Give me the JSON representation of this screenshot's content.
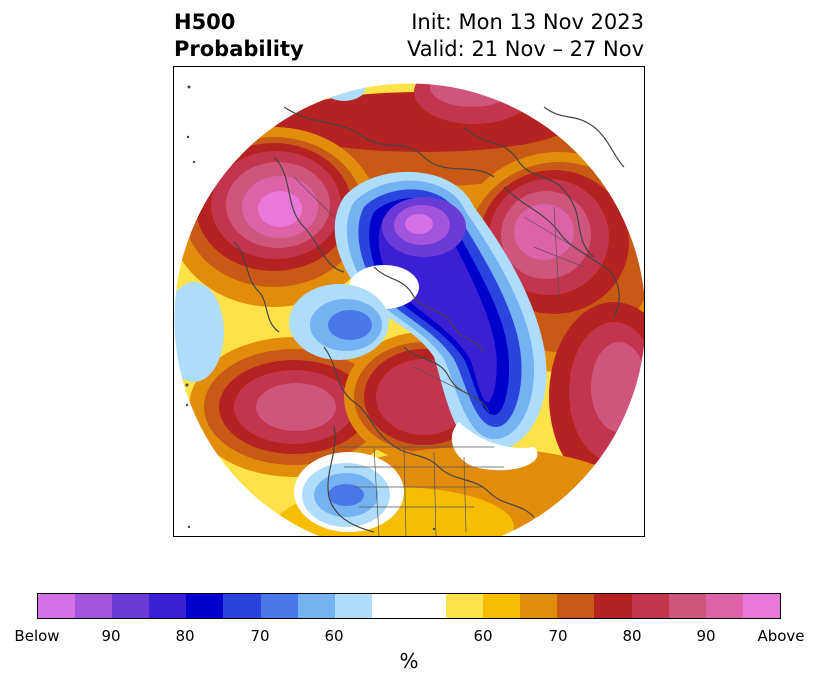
{
  "title": {
    "left_line1": "H500",
    "left_line2": "Probability",
    "init": "Init: Mon 13 Nov 2023",
    "valid": "Valid: 21 Nov – 27 Nov"
  },
  "colorbar": {
    "below_colors": [
      "#d670e8",
      "#a455e0",
      "#6a3bd6",
      "#3a1fd4",
      "#0000cd",
      "#2a45de",
      "#4a78e8",
      "#74b2f2",
      "#aedcfb"
    ],
    "neutral_color": "#ffffff",
    "above_colors": [
      "#ffe24a",
      "#f7bd00",
      "#e28c0c",
      "#c85a16",
      "#b52222",
      "#c3344d",
      "#d0557d",
      "#de62a8",
      "#e878da"
    ],
    "tick_labels": [
      "Below",
      "90",
      "80",
      "70",
      "60",
      "60",
      "70",
      "80",
      "90",
      "Above"
    ],
    "unit_label": "%"
  },
  "map": {
    "projection": "north-polar-stereographic",
    "domain": "Northern Hemisphere",
    "features": [
      "coastlines",
      "country-borders",
      "us-state-borders",
      "canadian-province-borders"
    ]
  }
}
